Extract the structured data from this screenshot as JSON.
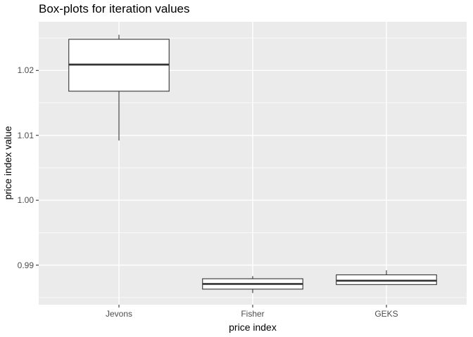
{
  "chart_data": {
    "type": "boxplot",
    "title": "Box-plots for iteration values",
    "xlabel": "price index",
    "ylabel": "price index value",
    "categories": [
      "Jevons",
      "Fisher",
      "GEKS"
    ],
    "series": [
      {
        "name": "Jevons",
        "min": 1.0092,
        "q1": 1.0168,
        "median": 1.0209,
        "q3": 1.0248,
        "max": 1.0255
      },
      {
        "name": "Fisher",
        "min": 0.9857,
        "q1": 0.9863,
        "median": 0.9871,
        "q3": 0.9879,
        "max": 0.9883
      },
      {
        "name": "GEKS",
        "min": 0.987,
        "q1": 0.987,
        "median": 0.9876,
        "q3": 0.9885,
        "max": 0.9892
      }
    ],
    "y_ticks": [
      {
        "value": 0.99,
        "label": "0.99"
      },
      {
        "value": 1.0,
        "label": "1.00"
      },
      {
        "value": 1.01,
        "label": "1.01"
      },
      {
        "value": 1.02,
        "label": "1.02"
      }
    ],
    "y_minor_gridlines": [
      0.985,
      0.995,
      1.005,
      1.015,
      1.025
    ],
    "ylim": [
      0.9839,
      1.0275
    ],
    "grid": true,
    "legend": "none"
  },
  "colors": {
    "panel_bg": "#EBEBEB",
    "grid_major": "#FFFFFF",
    "grid_minor": "#FFFFFF",
    "box_stroke": "#333333",
    "box_fill": "#FFFFFF",
    "median_stroke": "#333333",
    "whisker_stroke": "#333333",
    "tick_mark": "#333333",
    "title_text": "#000000",
    "axis_title_text": "#000000",
    "axis_tick_text": "#4D4D4D"
  }
}
